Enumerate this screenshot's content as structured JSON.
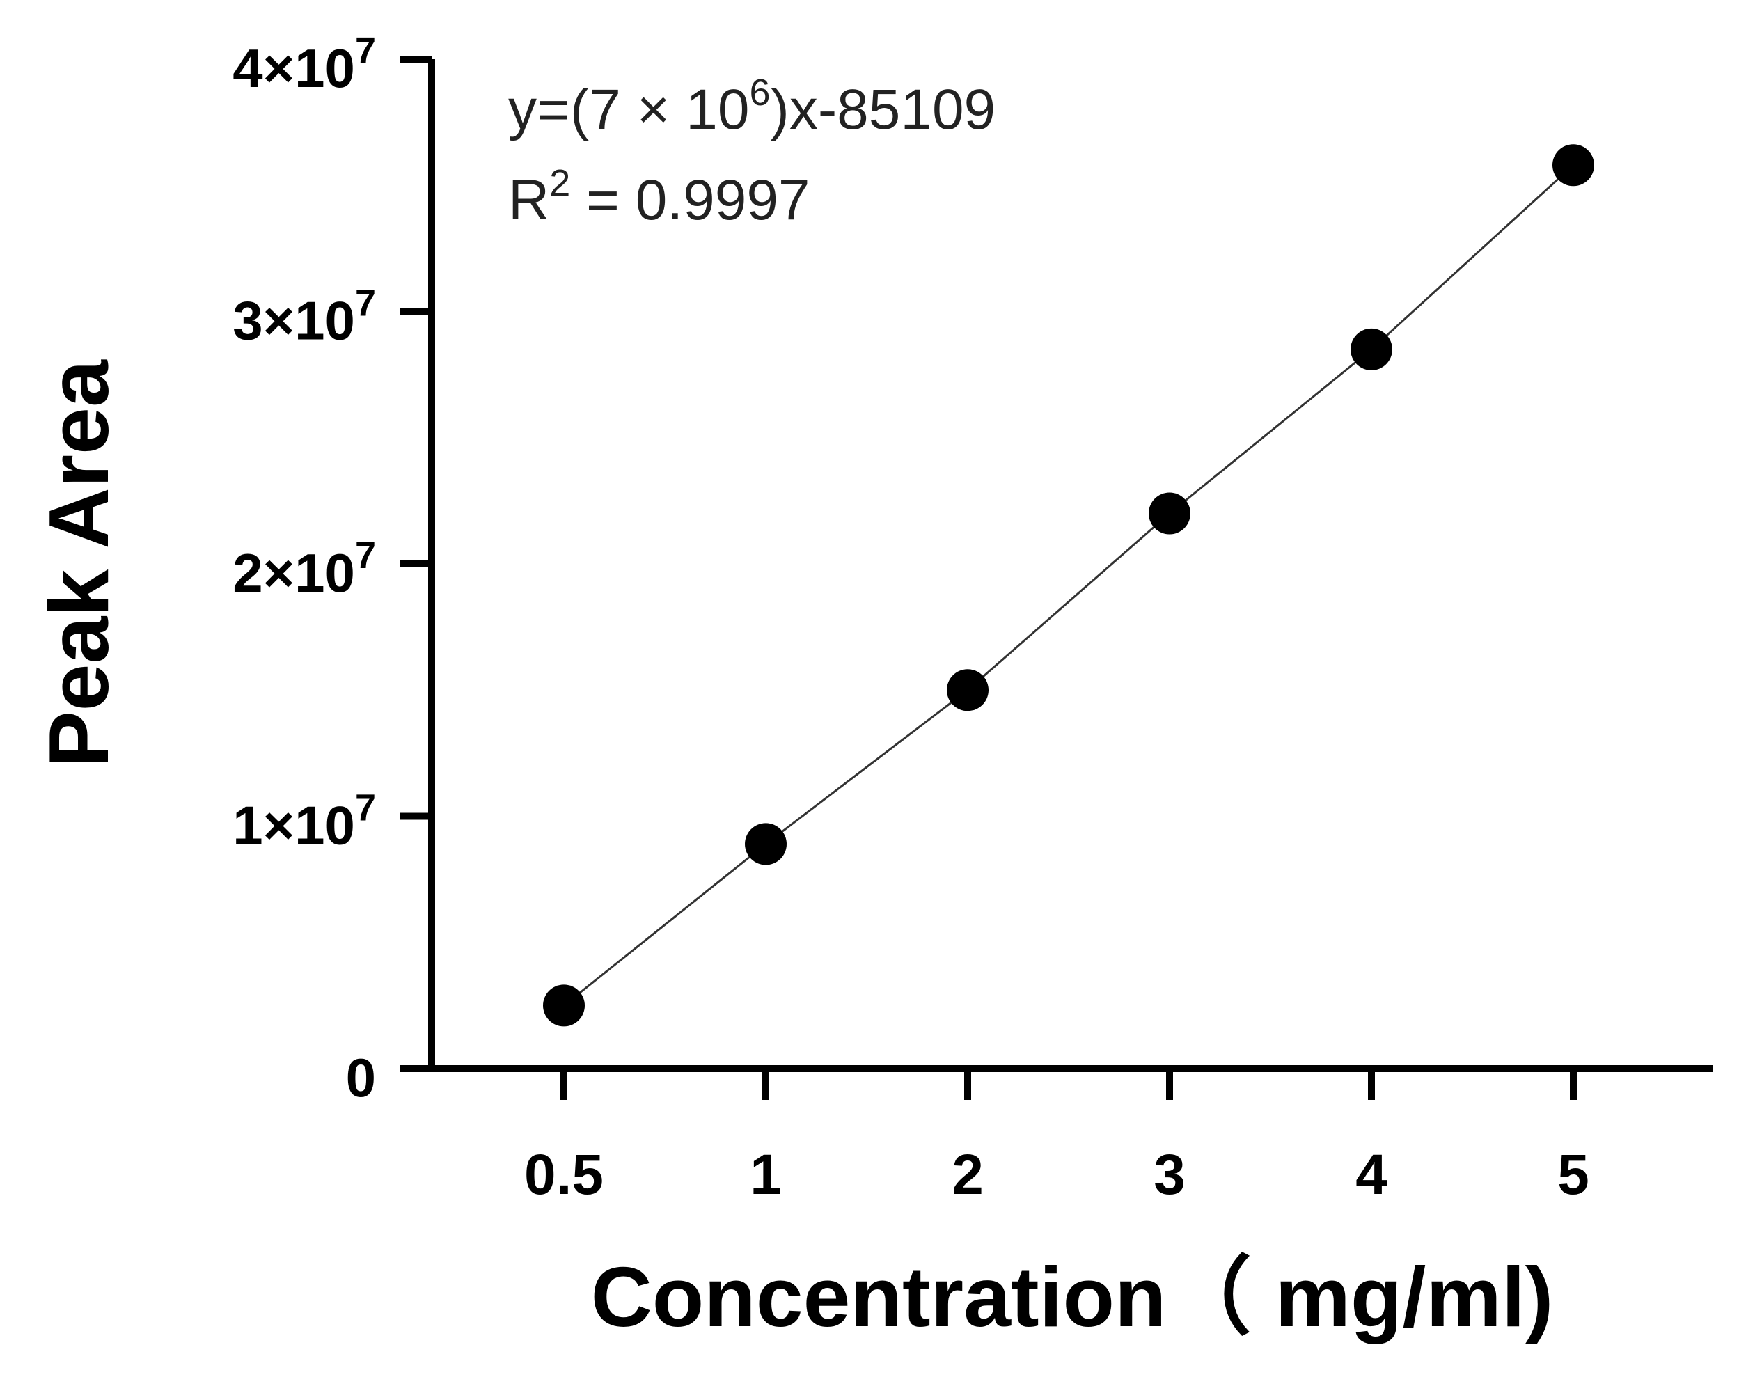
{
  "chart_data": {
    "type": "scatter",
    "title": "",
    "xlabel": "Concentration（ mg/ml)",
    "ylabel": "Peak Area",
    "x_categories": [
      "0.5",
      "1",
      "2",
      "3",
      "4",
      "5"
    ],
    "ylim": [
      0,
      40000000
    ],
    "y_ticks": [
      {
        "value": 0,
        "base": "0",
        "exp": ""
      },
      {
        "value": 10000000,
        "base": "1×10",
        "exp": "7"
      },
      {
        "value": 20000000,
        "base": "2×10",
        "exp": "7"
      },
      {
        "value": 30000000,
        "base": "3×10",
        "exp": "7"
      },
      {
        "value": 40000000,
        "base": "4×10",
        "exp": "7"
      }
    ],
    "series": [
      {
        "x": [
          "0.5",
          "1",
          "2",
          "3",
          "4",
          "5"
        ],
        "values": [
          2500000,
          8900000,
          15000000,
          22000000,
          28500000,
          35800000
        ],
        "marker_color": "#000000",
        "line_color": "#333333"
      }
    ],
    "grid": false,
    "legend": "none",
    "annotations": {
      "equation_prefix": "y=(7  × 10",
      "equation_exp": "6",
      "equation_suffix": ")x-85109",
      "r2_prefix": "R",
      "r2_exp": "2",
      "r2_suffix": " = 0.9997"
    }
  }
}
